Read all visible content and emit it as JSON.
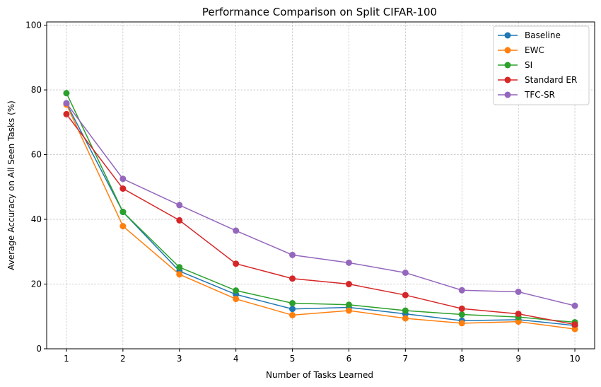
{
  "chart_data": {
    "type": "line",
    "title": "Performance Comparison on Split CIFAR-100",
    "xlabel": "Number of Tasks Learned",
    "ylabel": "Average Accuracy on All Seen Tasks (%)",
    "x": [
      1,
      2,
      3,
      4,
      5,
      6,
      7,
      8,
      9,
      10
    ],
    "xlim": [
      0.65,
      10.35
    ],
    "ylim": [
      0,
      101
    ],
    "yticks": [
      0,
      20,
      40,
      60,
      80,
      100
    ],
    "grid": true,
    "legend_position": "top-right",
    "series": [
      {
        "name": "Baseline",
        "color": "#1f77b4",
        "values": [
          75.8,
          42.3,
          24.0,
          16.8,
          12.3,
          12.8,
          10.8,
          8.7,
          9.0,
          7.2
        ]
      },
      {
        "name": "EWC",
        "color": "#ff7f0e",
        "values": [
          75.5,
          37.9,
          23.0,
          15.4,
          10.4,
          11.8,
          9.4,
          7.9,
          8.4,
          6.1
        ]
      },
      {
        "name": "SI",
        "color": "#2ca02c",
        "values": [
          79.0,
          42.3,
          25.2,
          18.0,
          14.1,
          13.6,
          11.8,
          10.6,
          9.8,
          8.2
        ]
      },
      {
        "name": "Standard ER",
        "color": "#d62728",
        "values": [
          72.5,
          49.5,
          39.7,
          26.3,
          21.7,
          20.0,
          16.6,
          12.4,
          10.8,
          7.5
        ]
      },
      {
        "name": "TFC-SR",
        "color": "#9467bd",
        "values": [
          75.9,
          52.5,
          44.4,
          36.5,
          29.0,
          26.6,
          23.5,
          18.1,
          17.6,
          13.3
        ]
      }
    ]
  }
}
